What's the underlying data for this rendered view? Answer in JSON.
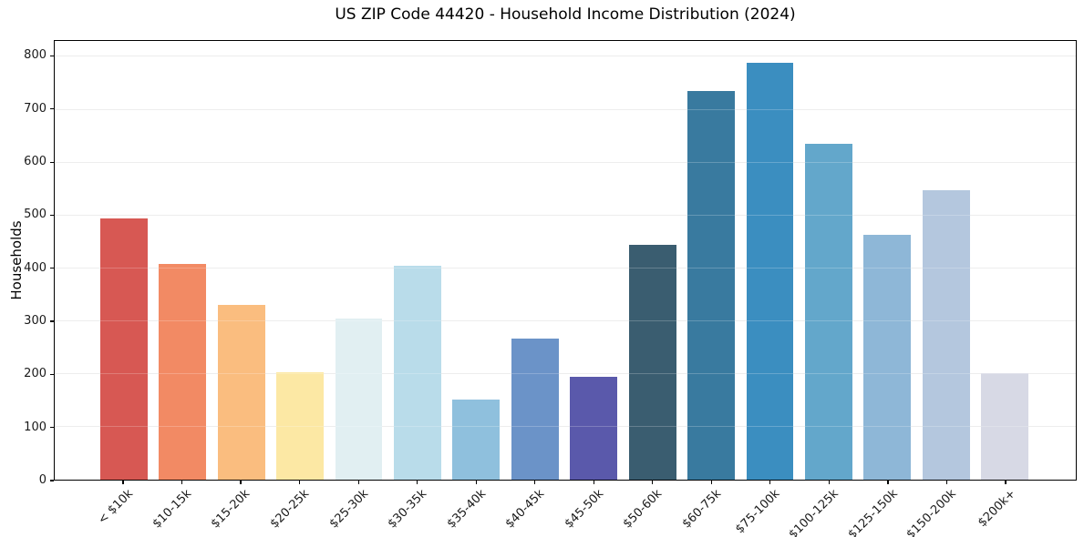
{
  "chart_data": {
    "type": "bar",
    "title": "US ZIP Code 44420 - Household Income Distribution (2024)",
    "xlabel": "",
    "ylabel": "Households",
    "categories": [
      "< $10k",
      "$10-15k",
      "$15-20k",
      "$20-25k",
      "$25-30k",
      "$30-35k",
      "$35-40k",
      "$40-45k",
      "$45-50k",
      "$50-60k",
      "$60-75k",
      "$75-100k",
      "$100-125k",
      "$125-150k",
      "$150-200k",
      "$200k+"
    ],
    "values": [
      495,
      408,
      331,
      203,
      304,
      404,
      151,
      267,
      194,
      444,
      735,
      789,
      635,
      464,
      547,
      202
    ],
    "bar_colors": [
      "#d75853",
      "#f28a64",
      "#fabd7f",
      "#fce8a4",
      "#e1eff2",
      "#b9dcea",
      "#8fc0dd",
      "#6b93c8",
      "#5a59ab",
      "#3a5d70",
      "#397a9f",
      "#3b8ec0",
      "#63a7cb",
      "#8eb7d7",
      "#b4c7de",
      "#d7d9e5"
    ],
    "yticks": [
      0,
      100,
      200,
      300,
      400,
      500,
      600,
      700,
      800
    ],
    "ylim": [
      0,
      830
    ],
    "grid": "horizontal",
    "grid_color": "#e8e8e8",
    "background_color": "#ffffff",
    "spine_color": "#000000",
    "legend": "none",
    "x_tick_rotation_deg": 45
  }
}
